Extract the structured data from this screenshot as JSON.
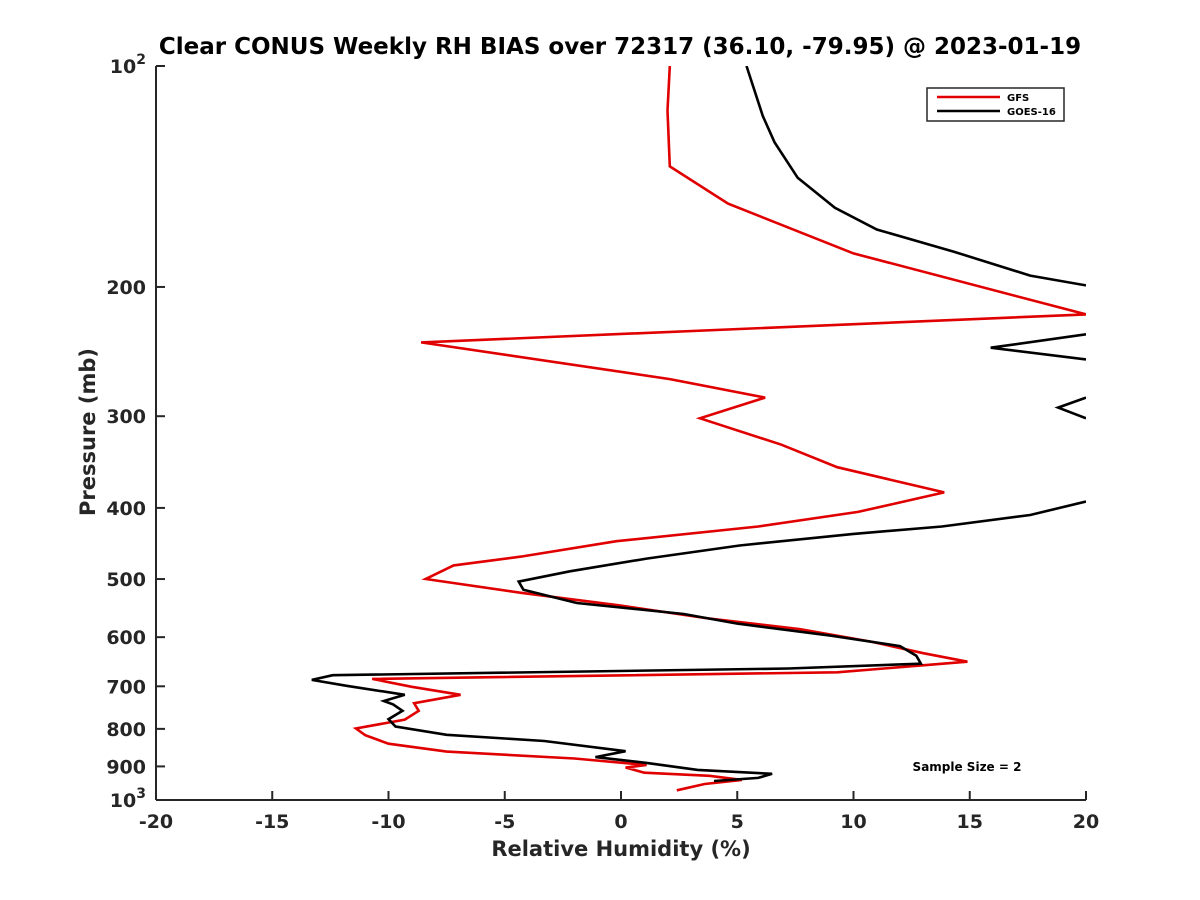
{
  "chart_data": {
    "type": "line",
    "title": "Clear CONUS Weekly RH BIAS over 72317 (36.10, -79.95) @ 2023-01-19",
    "xlabel": "Relative Humidity (%)",
    "ylabel": "Pressure (mb)",
    "xlim": [
      -20,
      20
    ],
    "ylim": [
      100,
      1000
    ],
    "y_scale": "log",
    "y_reversed": true,
    "x_ticks": [
      -20,
      -15,
      -10,
      -5,
      0,
      5,
      10,
      15,
      20
    ],
    "y_ticks": [
      100,
      200,
      300,
      400,
      500,
      600,
      700,
      800,
      900,
      1000
    ],
    "y_tick_labels": [
      {
        "base": "10",
        "exp": "2"
      },
      {
        "base": "200",
        "exp": ""
      },
      {
        "base": "300",
        "exp": ""
      },
      {
        "base": "400",
        "exp": ""
      },
      {
        "base": "500",
        "exp": ""
      },
      {
        "base": "600",
        "exp": ""
      },
      {
        "base": "700",
        "exp": ""
      },
      {
        "base": "800",
        "exp": ""
      },
      {
        "base": "900",
        "exp": ""
      },
      {
        "base": "10",
        "exp": "3"
      }
    ],
    "grid": false,
    "legend_position": "top-right",
    "annotation": "Sample Size = 2",
    "series": [
      {
        "name": "GFS",
        "color": "#e00000",
        "points": [
          [
            2.1,
            100
          ],
          [
            2.0,
            115
          ],
          [
            2.1,
            137
          ],
          [
            4.6,
            154
          ],
          [
            10,
            180
          ],
          [
            20,
            218
          ],
          [
            -8.6,
            238
          ],
          [
            2.1,
            267
          ],
          [
            6.2,
            283
          ],
          [
            3.4,
            302
          ],
          [
            6.9,
            328
          ],
          [
            9.3,
            352
          ],
          [
            13.9,
            381
          ],
          [
            10.2,
            405
          ],
          [
            5.9,
            424
          ],
          [
            -0.2,
            444
          ],
          [
            -4.3,
            466
          ],
          [
            -7.2,
            479
          ],
          [
            -8.4,
            500
          ],
          [
            -4.3,
            522
          ],
          [
            -0.1,
            543
          ],
          [
            3.8,
            566
          ],
          [
            7.7,
            585
          ],
          [
            10.8,
            609
          ],
          [
            13.0,
            631
          ],
          [
            14.9,
            648
          ],
          [
            9.3,
            670
          ],
          [
            -10.7,
            684
          ],
          [
            -9.0,
            701
          ],
          [
            -6.9,
            719
          ],
          [
            -8.9,
            738
          ],
          [
            -8.7,
            756
          ],
          [
            -9.3,
            777
          ],
          [
            -11.4,
            799
          ],
          [
            -11.0,
            816
          ],
          [
            -10.0,
            838
          ],
          [
            -7.5,
            859
          ],
          [
            -2.0,
            878
          ],
          [
            1.1,
            896
          ],
          [
            0.2,
            903
          ],
          [
            1.0,
            918
          ],
          [
            3.8,
            927
          ],
          [
            5.2,
            939
          ],
          [
            3.6,
            951
          ],
          [
            2.4,
            970
          ]
        ]
      },
      {
        "name": "GOES-16",
        "color": "#000000",
        "points": [
          [
            5.4,
            100
          ],
          [
            6.1,
            117
          ],
          [
            6.6,
            127
          ],
          [
            7.6,
            142
          ],
          [
            9.2,
            156
          ],
          [
            11.0,
            167
          ],
          [
            14.3,
            179
          ],
          [
            17.6,
            193
          ],
          [
            20,
            199
          ],
          [
            null,
            null
          ],
          [
            20,
            232
          ],
          [
            15.9,
            242
          ],
          [
            20,
            251
          ],
          [
            null,
            null
          ],
          [
            20,
            283
          ],
          [
            18.8,
            292
          ],
          [
            20,
            302
          ],
          [
            null,
            null
          ],
          [
            20,
            392
          ],
          [
            17.6,
            409
          ],
          [
            13.8,
            424
          ],
          [
            10.0,
            434
          ],
          [
            5.1,
            450
          ],
          [
            1.1,
            469
          ],
          [
            -2.2,
            488
          ],
          [
            -4.4,
            504
          ],
          [
            -4.2,
            517
          ],
          [
            -1.9,
            539
          ],
          [
            2.7,
            558
          ],
          [
            5.0,
            575
          ],
          [
            9.0,
            597
          ],
          [
            12.0,
            617
          ],
          [
            12.7,
            636
          ],
          [
            12.9,
            652
          ],
          [
            7.2,
            662
          ],
          [
            -12.4,
            676
          ],
          [
            -13.3,
            686
          ],
          [
            -11.8,
            699
          ],
          [
            -9.3,
            719
          ],
          [
            -10.2,
            733
          ],
          [
            -9.8,
            741
          ],
          [
            -9.4,
            756
          ],
          [
            -10.0,
            776
          ],
          [
            -9.7,
            794
          ],
          [
            -7.5,
            815
          ],
          [
            -3.3,
            831
          ],
          [
            0.2,
            858
          ],
          [
            -1.1,
            874
          ],
          [
            1.1,
            890
          ],
          [
            3.3,
            910
          ],
          [
            6.5,
            921
          ],
          [
            5.9,
            933
          ],
          [
            4.0,
            942
          ]
        ]
      }
    ]
  }
}
